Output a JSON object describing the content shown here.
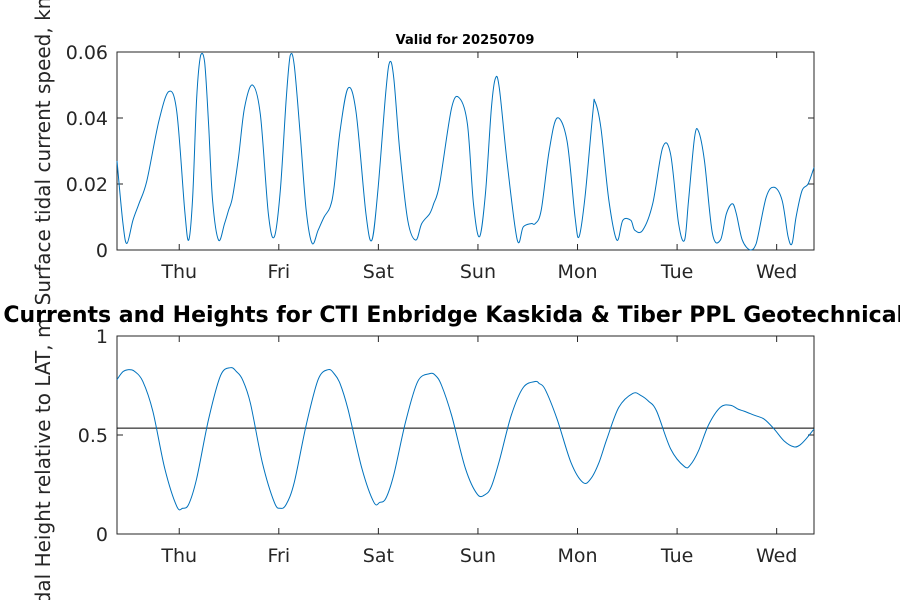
{
  "figure_title": "Currents and Heights for CTI Enbridge  Kaskida & Tiber PPL Geotechnical a",
  "colors": {
    "series": "#0072bd",
    "axes": "#262626",
    "reference": "#000000"
  },
  "chart_data": [
    {
      "type": "line",
      "title": "Valid for 20250709",
      "ylabel": "Surface tidal current speed, kn",
      "xlabel": "",
      "xlim": [
        0,
        7
      ],
      "ylim": [
        0,
        0.06
      ],
      "yticks": [
        0,
        0.02,
        0.04,
        0.06
      ],
      "ytick_labels": [
        "0",
        "0.02",
        "0.04",
        "0.06"
      ],
      "xticks": [
        0.625,
        1.625,
        2.625,
        3.625,
        4.625,
        5.625,
        6.625
      ],
      "xtick_labels": [
        "Thu",
        "Fri",
        "Sat",
        "Sun",
        "Mon",
        "Tue",
        "Wed"
      ],
      "grid": false,
      "series": [
        {
          "x": [
            0.0,
            0.06,
            0.1,
            0.16,
            0.22,
            0.3,
            0.42,
            0.52,
            0.6,
            0.68,
            0.72,
            0.76,
            0.8,
            0.84,
            0.88,
            0.92,
            0.96,
            1.02,
            1.08,
            1.12,
            1.16,
            1.22,
            1.28,
            1.36,
            1.44,
            1.52,
            1.58,
            1.64,
            1.7,
            1.74,
            1.78,
            1.84,
            1.9,
            1.96,
            2.02,
            2.08,
            2.14,
            2.18,
            2.24,
            2.32,
            2.4,
            2.5,
            2.56,
            2.62,
            2.7,
            2.74,
            2.78,
            2.84,
            2.92,
            3.0,
            3.06,
            3.14,
            3.18,
            3.24,
            3.36,
            3.44,
            3.52,
            3.58,
            3.64,
            3.7,
            3.76,
            3.8,
            3.84,
            3.92,
            4.02,
            4.08,
            4.16,
            4.2,
            4.26,
            4.34,
            4.42,
            4.52,
            4.6,
            4.64,
            4.7,
            4.78,
            4.8,
            4.86,
            4.94,
            5.02,
            5.08,
            5.16,
            5.2,
            5.28,
            5.38,
            5.48,
            5.56,
            5.64,
            5.7,
            5.74,
            5.8,
            5.84,
            5.9,
            5.98,
            6.06,
            6.12,
            6.18,
            6.22,
            6.28,
            6.36,
            6.42,
            6.52,
            6.6,
            6.68,
            6.74,
            6.78,
            6.82,
            6.88,
            6.94,
            7.0
          ],
          "y": [
            0.027,
            0.008,
            0.002,
            0.009,
            0.014,
            0.021,
            0.039,
            0.048,
            0.042,
            0.012,
            0.003,
            0.016,
            0.046,
            0.059,
            0.057,
            0.038,
            0.015,
            0.003,
            0.008,
            0.012,
            0.016,
            0.028,
            0.043,
            0.05,
            0.041,
            0.011,
            0.004,
            0.018,
            0.046,
            0.059,
            0.056,
            0.035,
            0.012,
            0.002,
            0.006,
            0.01,
            0.013,
            0.019,
            0.036,
            0.049,
            0.042,
            0.011,
            0.003,
            0.018,
            0.048,
            0.057,
            0.052,
            0.03,
            0.009,
            0.003,
            0.008,
            0.011,
            0.014,
            0.02,
            0.043,
            0.046,
            0.038,
            0.014,
            0.004,
            0.017,
            0.043,
            0.052,
            0.049,
            0.026,
            0.003,
            0.007,
            0.008,
            0.008,
            0.012,
            0.03,
            0.04,
            0.033,
            0.01,
            0.004,
            0.016,
            0.042,
            0.045,
            0.037,
            0.015,
            0.003,
            0.009,
            0.009,
            0.006,
            0.006,
            0.014,
            0.031,
            0.029,
            0.008,
            0.003,
            0.015,
            0.034,
            0.036,
            0.027,
            0.005,
            0.003,
            0.011,
            0.014,
            0.011,
            0.003,
            0.0,
            0.002,
            0.016,
            0.019,
            0.015,
            0.004,
            0.002,
            0.01,
            0.018,
            0.02,
            0.025
          ]
        }
      ]
    },
    {
      "type": "line",
      "title": "",
      "ylabel": "Tidal Height relative to LAT, m",
      "xlabel": "",
      "xlim": [
        0,
        7
      ],
      "ylim": [
        0,
        1
      ],
      "yticks": [
        0,
        0.5,
        1
      ],
      "ytick_labels": [
        "0",
        "0.5",
        "1"
      ],
      "xticks": [
        0.625,
        1.625,
        2.625,
        3.625,
        4.625,
        5.625,
        6.625
      ],
      "xtick_labels": [
        "Thu",
        "Fri",
        "Sat",
        "Sun",
        "Mon",
        "Tue",
        "Wed"
      ],
      "grid": false,
      "reference_line": 0.535,
      "series": [
        {
          "x": [
            0.0,
            0.06,
            0.12,
            0.18,
            0.26,
            0.36,
            0.48,
            0.6,
            0.66,
            0.72,
            0.8,
            0.92,
            1.04,
            1.14,
            1.2,
            1.26,
            1.34,
            1.46,
            1.58,
            1.64,
            1.7,
            1.78,
            1.9,
            2.02,
            2.12,
            2.18,
            2.24,
            2.32,
            2.46,
            2.58,
            2.64,
            2.7,
            2.78,
            2.9,
            3.02,
            3.14,
            3.2,
            3.26,
            3.36,
            3.5,
            3.62,
            3.7,
            3.76,
            3.84,
            3.96,
            4.08,
            4.2,
            4.24,
            4.3,
            4.42,
            4.56,
            4.68,
            4.76,
            4.84,
            4.92,
            5.04,
            5.18,
            5.26,
            5.34,
            5.42,
            5.56,
            5.7,
            5.76,
            5.84,
            5.94,
            6.06,
            6.16,
            6.24,
            6.3,
            6.4,
            6.5,
            6.6,
            6.7,
            6.8,
            6.86,
            6.92,
            7.0
          ],
          "y": [
            0.78,
            0.82,
            0.83,
            0.82,
            0.77,
            0.62,
            0.33,
            0.14,
            0.13,
            0.15,
            0.28,
            0.58,
            0.8,
            0.84,
            0.82,
            0.78,
            0.66,
            0.36,
            0.16,
            0.13,
            0.15,
            0.26,
            0.55,
            0.78,
            0.83,
            0.81,
            0.76,
            0.63,
            0.33,
            0.16,
            0.16,
            0.18,
            0.3,
            0.57,
            0.77,
            0.81,
            0.8,
            0.75,
            0.6,
            0.33,
            0.2,
            0.2,
            0.24,
            0.37,
            0.6,
            0.74,
            0.77,
            0.76,
            0.73,
            0.58,
            0.36,
            0.26,
            0.28,
            0.36,
            0.48,
            0.64,
            0.71,
            0.7,
            0.67,
            0.62,
            0.43,
            0.34,
            0.35,
            0.42,
            0.55,
            0.64,
            0.65,
            0.63,
            0.62,
            0.6,
            0.58,
            0.53,
            0.47,
            0.44,
            0.45,
            0.48,
            0.53
          ]
        }
      ]
    }
  ]
}
